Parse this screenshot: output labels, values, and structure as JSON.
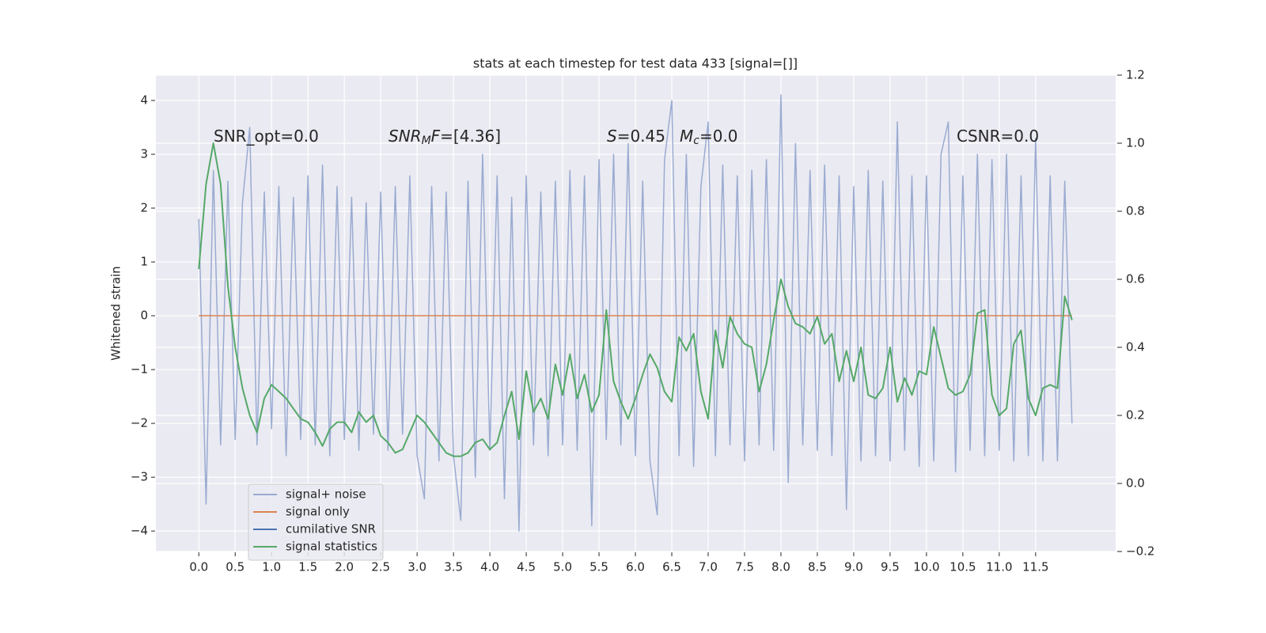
{
  "chart_data": {
    "type": "line",
    "title": "stats at each timestep for test data 433 [signal=[]]",
    "y_label": "Whitened strain",
    "annotations": [
      [
        {
          "text": "SNR_opt=0.0"
        }
      ],
      [
        {
          "text": "SNR",
          "italic": true
        },
        {
          "text": "M",
          "italic": true,
          "sub": true
        },
        {
          "text": "F",
          "italic": true
        },
        {
          "text": "=[4.36]"
        }
      ],
      [
        {
          "text": "S",
          "italic": true
        },
        {
          "text": "=0.45"
        }
      ],
      [
        {
          "text": "M",
          "italic": true
        },
        {
          "text": "c",
          "italic": true,
          "sub": true
        },
        {
          "text": "=0.0"
        }
      ],
      [
        {
          "text": "CSNR=0.0"
        }
      ]
    ],
    "x": [
      0,
      0.1,
      0.2,
      0.3,
      0.4,
      0.5,
      0.6,
      0.7,
      0.8,
      0.9,
      1,
      1.1,
      1.2,
      1.3,
      1.4,
      1.5,
      1.6,
      1.7,
      1.8,
      1.9,
      2,
      2.1,
      2.2,
      2.3,
      2.4,
      2.5,
      2.6,
      2.7,
      2.8,
      2.9,
      3,
      3.1,
      3.2,
      3.3,
      3.4,
      3.5,
      3.6,
      3.7,
      3.8,
      3.9,
      4,
      4.1,
      4.2,
      4.3,
      4.4,
      4.5,
      4.6,
      4.7,
      4.8,
      4.9,
      5,
      5.1,
      5.2,
      5.3,
      5.4,
      5.5,
      5.6,
      5.7,
      5.8,
      5.9,
      6,
      6.1,
      6.2,
      6.3,
      6.4,
      6.5,
      6.6,
      6.7,
      6.8,
      6.9,
      7,
      7.1,
      7.2,
      7.3,
      7.4,
      7.5,
      7.6,
      7.7,
      7.8,
      7.9,
      8,
      8.1,
      8.2,
      8.3,
      8.4,
      8.5,
      8.6,
      8.7,
      8.8,
      8.9,
      9,
      9.1,
      9.2,
      9.3,
      9.4,
      9.5,
      9.6,
      9.7,
      9.8,
      9.9,
      10,
      10.1,
      10.2,
      10.3,
      10.4,
      10.5,
      10.6,
      10.7,
      10.8,
      10.9,
      11,
      11.1,
      11.2,
      11.3,
      11.4,
      11.5,
      11.6,
      11.7,
      11.8,
      11.9,
      12
    ],
    "series": [
      {
        "name": "signal+ noise",
        "color": "#9aabd1",
        "values": [
          1.8,
          -3.5,
          2.7,
          -2.4,
          2.5,
          -2.3,
          2.1,
          3.5,
          -2.4,
          2.3,
          -2.1,
          2.4,
          -2.6,
          2.2,
          -2.3,
          2.6,
          -2.4,
          2.8,
          -2.6,
          2.4,
          -2.3,
          2.2,
          -2.5,
          2.1,
          -2.2,
          2.3,
          -2.5,
          2.4,
          -2.2,
          2.6,
          -2.6,
          -3.4,
          2.4,
          -2.7,
          2.3,
          -2.6,
          -3.8,
          2.5,
          -3.0,
          3.0,
          -2.5,
          2.6,
          -3.4,
          2.2,
          -4.0,
          2.6,
          -2.4,
          2.3,
          -2.6,
          2.5,
          -2.4,
          2.7,
          -2.5,
          2.6,
          -3.9,
          2.9,
          -2.3,
          3.0,
          -2.4,
          3.2,
          -2.6,
          2.5,
          -2.7,
          -3.7,
          2.9,
          4.0,
          -2.6,
          3.0,
          -2.8,
          2.4,
          3.6,
          -2.6,
          2.8,
          -2.4,
          2.6,
          -2.7,
          2.7,
          -2.4,
          2.9,
          -2.5,
          4.1,
          -3.1,
          3.2,
          -2.4,
          2.7,
          -2.5,
          2.8,
          -2.6,
          2.6,
          -3.6,
          2.4,
          -2.7,
          2.7,
          -2.6,
          2.5,
          -2.7,
          3.6,
          -2.5,
          2.6,
          -2.8,
          2.6,
          -2.7,
          3.0,
          3.6,
          -2.9,
          2.6,
          -2.5,
          3.0,
          -2.6,
          2.9,
          -2.5,
          3.0,
          -2.7,
          2.6,
          -2.6,
          3.3,
          -2.7,
          2.6,
          -2.7,
          2.5,
          -2.0
        ]
      },
      {
        "name": "signal only",
        "color": "#dd8452",
        "values": [
          0,
          0,
          0,
          0,
          0,
          0,
          0,
          0,
          0,
          0,
          0,
          0,
          0,
          0,
          0,
          0,
          0,
          0,
          0,
          0,
          0,
          0,
          0,
          0,
          0,
          0,
          0,
          0,
          0,
          0,
          0,
          0,
          0,
          0,
          0,
          0,
          0,
          0,
          0,
          0,
          0,
          0,
          0,
          0,
          0,
          0,
          0,
          0,
          0,
          0,
          0,
          0,
          0,
          0,
          0,
          0,
          0,
          0,
          0,
          0,
          0,
          0,
          0,
          0,
          0,
          0,
          0,
          0,
          0,
          0,
          0,
          0,
          0,
          0,
          0,
          0,
          0,
          0,
          0,
          0,
          0,
          0,
          0,
          0,
          0,
          0,
          0,
          0,
          0,
          0,
          0,
          0,
          0,
          0,
          0,
          0,
          0,
          0,
          0,
          0,
          0,
          0,
          0,
          0,
          0,
          0,
          0,
          0,
          0,
          0,
          0,
          0,
          0,
          0,
          0,
          0,
          0,
          0,
          0,
          0,
          0
        ]
      },
      {
        "name": "cumilative SNR",
        "color": "#4c72b0"
      },
      {
        "name": "signal statistics",
        "color": "#55a868",
        "axis": "y2",
        "values": [
          0.63,
          0.88,
          1.0,
          0.88,
          0.58,
          0.4,
          0.28,
          0.2,
          0.15,
          0.25,
          0.29,
          0.27,
          0.25,
          0.22,
          0.19,
          0.18,
          0.15,
          0.11,
          0.16,
          0.18,
          0.18,
          0.15,
          0.21,
          0.18,
          0.2,
          0.14,
          0.12,
          0.09,
          0.1,
          0.15,
          0.2,
          0.18,
          0.15,
          0.12,
          0.09,
          0.08,
          0.08,
          0.09,
          0.12,
          0.13,
          0.1,
          0.12,
          0.2,
          0.27,
          0.13,
          0.33,
          0.21,
          0.25,
          0.19,
          0.35,
          0.26,
          0.38,
          0.25,
          0.32,
          0.21,
          0.26,
          0.51,
          0.3,
          0.24,
          0.19,
          0.25,
          0.32,
          0.38,
          0.34,
          0.27,
          0.24,
          0.43,
          0.39,
          0.44,
          0.27,
          0.19,
          0.45,
          0.34,
          0.49,
          0.44,
          0.41,
          0.4,
          0.27,
          0.35,
          0.48,
          0.6,
          0.52,
          0.47,
          0.46,
          0.44,
          0.49,
          0.41,
          0.44,
          0.3,
          0.39,
          0.3,
          0.4,
          0.26,
          0.25,
          0.28,
          0.4,
          0.24,
          0.31,
          0.26,
          0.33,
          0.32,
          0.46,
          0.37,
          0.28,
          0.26,
          0.27,
          0.32,
          0.5,
          0.51,
          0.26,
          0.2,
          0.22,
          0.41,
          0.45,
          0.25,
          0.2,
          0.28,
          0.29,
          0.28,
          0.55,
          0.48
        ]
      }
    ],
    "xlim": [
      -0.59,
      12.6
    ],
    "xticks": [
      {
        "value": 0,
        "label": "0.0"
      },
      0.5,
      {
        "value": 1,
        "label": "1.0"
      },
      1.5,
      {
        "value": 2,
        "label": "2.0"
      },
      2.5,
      {
        "value": 3,
        "label": "3.0"
      },
      3.5,
      {
        "value": 4,
        "label": "4.0"
      },
      4.5,
      {
        "value": 5,
        "label": "5.0"
      },
      5.5,
      {
        "value": 6,
        "label": "6.0"
      },
      6.5,
      {
        "value": 7,
        "label": "7.0"
      },
      7.5,
      {
        "value": 8,
        "label": "8.0"
      },
      8.5,
      {
        "value": 9,
        "label": "9.0"
      },
      9.5,
      {
        "value": 10,
        "label": "10.0"
      },
      10.5,
      {
        "value": 11,
        "label": "11.0"
      },
      11.5
    ],
    "ylim": [
      -4.38,
      4.47
    ],
    "yticks": [
      {
        "value": -4,
        "label": "−4"
      },
      {
        "value": -3,
        "label": "−3"
      },
      {
        "value": -2,
        "label": "−2"
      },
      {
        "value": -1,
        "label": "−1"
      },
      0,
      1,
      2,
      3,
      4
    ],
    "y2lim": [
      -0.2,
      1.2
    ],
    "y2ticks": [
      {
        "value": -0.2,
        "label": "−0.2"
      },
      {
        "value": 0,
        "label": "0.0"
      },
      0.2,
      0.4,
      0.6,
      0.8,
      {
        "value": 1,
        "label": "1.0"
      },
      1.2
    ],
    "grid": true,
    "legend": "lower left"
  }
}
